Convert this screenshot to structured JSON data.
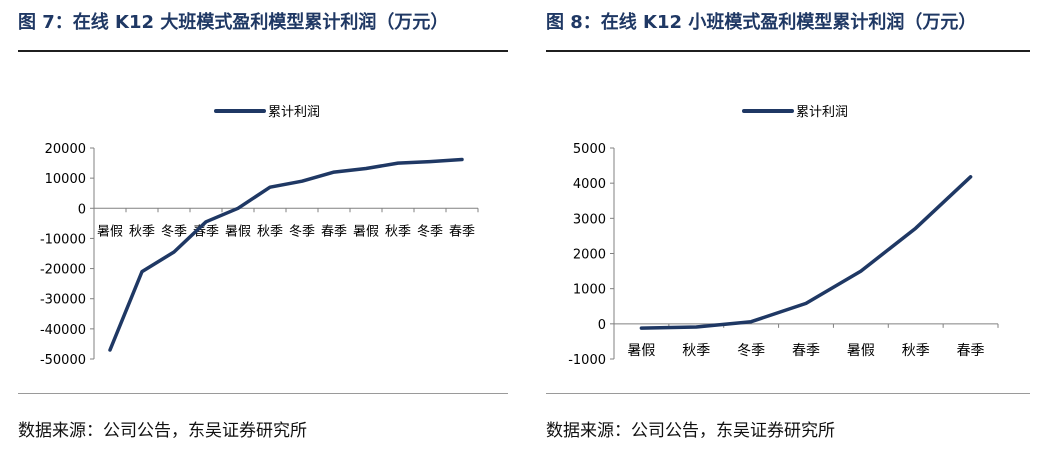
{
  "left": {
    "figure_title": "图 7：在线 K12 大班模式盈利模型累计利润（万元）",
    "source": "数据来源：公司公告，东吴证券研究所"
  },
  "right": {
    "figure_title": "图 8：在线 K12 小班模式盈利模型累计利润（万元）",
    "source": "数据来源：公司公告，东吴证券研究所"
  },
  "colors": {
    "line": "#1f3864",
    "axis": "#808080",
    "title": "#1f3864"
  },
  "chart_data": [
    {
      "type": "line",
      "title": "",
      "xlabel": "",
      "ylabel": "",
      "categories": [
        "暑假",
        "秋季",
        "冬季",
        "春季",
        "暑假",
        "秋季",
        "冬季",
        "春季",
        "暑假",
        "秋季",
        "冬季",
        "春季"
      ],
      "series": [
        {
          "name": "累计利润",
          "values": [
            -47000,
            -21000,
            -14500,
            -4500,
            0,
            7000,
            9000,
            12000,
            13200,
            15000,
            15500,
            16200
          ]
        }
      ],
      "ylim": [
        -50000,
        20000
      ],
      "yticks": [
        20000,
        10000,
        0,
        -10000,
        -20000,
        -30000,
        -40000,
        -50000
      ],
      "ytick_labels": [
        "20000",
        "10000",
        "0",
        "-10000",
        "-20000",
        "-30000",
        "-40000",
        "-50000"
      ],
      "legend": "top-center",
      "grid": false
    },
    {
      "type": "line",
      "title": "",
      "xlabel": "",
      "ylabel": "",
      "categories": [
        "暑假",
        "秋季",
        "冬季",
        "春季",
        "暑假",
        "秋季",
        "春季"
      ],
      "series": [
        {
          "name": "累计利润",
          "values": [
            -120,
            -90,
            60,
            580,
            1500,
            2720,
            4180
          ]
        }
      ],
      "ylim": [
        -1000,
        5000
      ],
      "yticks": [
        5000,
        4000,
        3000,
        2000,
        1000,
        0,
        -1000
      ],
      "ytick_labels": [
        "5000",
        "4000",
        "3000",
        "2000",
        "1000",
        "0",
        "-1000"
      ],
      "legend": "top-center",
      "grid": false
    }
  ]
}
